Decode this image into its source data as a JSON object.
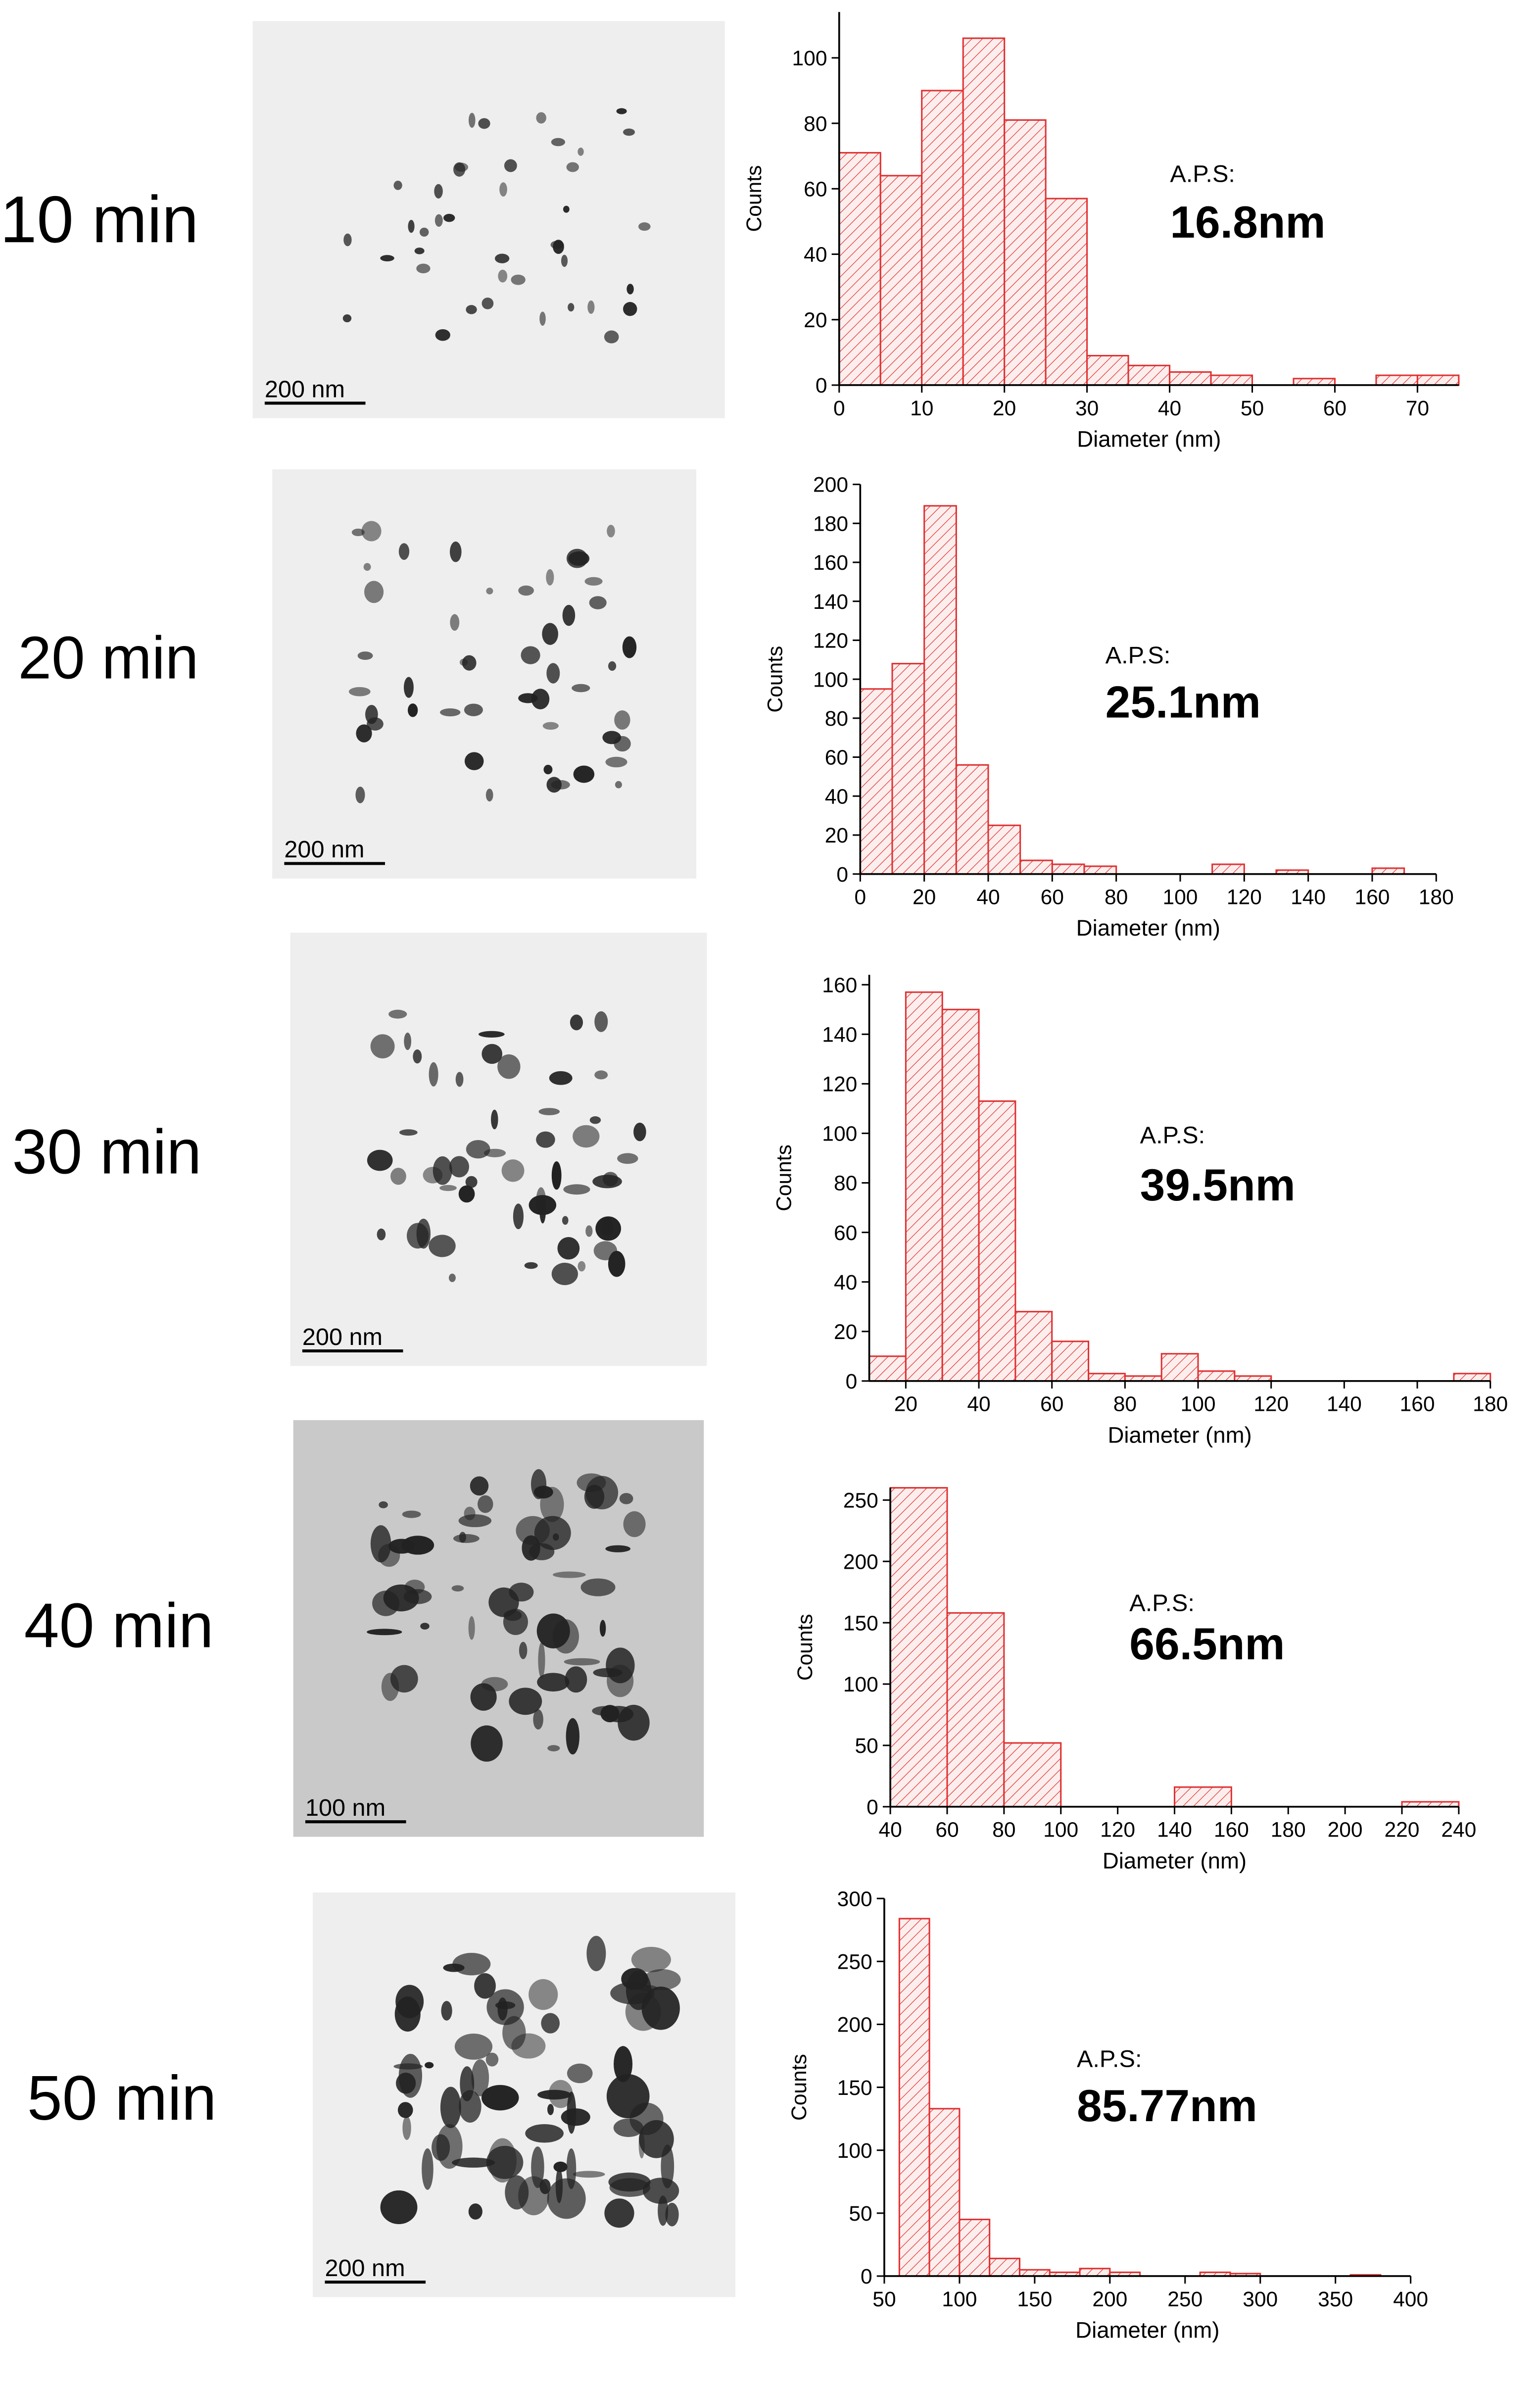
{
  "panels": [
    {
      "label": "10 min",
      "scale_bar": "200 nm"
    },
    {
      "label": "20 min",
      "scale_bar": "200 nm"
    },
    {
      "label": "30 min",
      "scale_bar": "200 nm"
    },
    {
      "label": "40 min",
      "scale_bar": "100 nm"
    },
    {
      "label": "50 min",
      "scale_bar": "200 nm"
    }
  ],
  "chart_data": [
    {
      "type": "histogram",
      "xlabel": "Diameter (nm)",
      "ylabel": "Counts",
      "annotation": "A.P.S:",
      "annotation_value": "16.8nm",
      "color": "#e03030",
      "bins": [
        0,
        5,
        10,
        15,
        20,
        25,
        30,
        35,
        40,
        45,
        50,
        55,
        60,
        65,
        70,
        75
      ],
      "values": [
        71,
        64,
        90,
        106,
        81,
        57,
        9,
        6,
        4,
        3,
        0,
        2,
        0,
        3,
        3
      ],
      "xlim": [
        0,
        75
      ],
      "xticks": [
        0,
        10,
        20,
        30,
        40,
        50,
        60,
        70
      ],
      "ylim": [
        0,
        114
      ],
      "yticks": [
        0,
        20,
        40,
        60,
        80,
        100
      ]
    },
    {
      "type": "histogram",
      "xlabel": "Diameter (nm)",
      "ylabel": "Counts",
      "annotation": "A.P.S:",
      "annotation_value": "25.1nm",
      "color": "#e03030",
      "bins": [
        0,
        10,
        20,
        30,
        40,
        50,
        60,
        70,
        80,
        90,
        100,
        110,
        120,
        130,
        140,
        150,
        160,
        170,
        180
      ],
      "values": [
        95,
        108,
        189,
        56,
        25,
        7,
        5,
        4,
        0,
        0,
        0,
        5,
        0,
        2,
        0,
        0,
        3,
        0
      ],
      "xlim": [
        0,
        180
      ],
      "xticks": [
        0,
        20,
        40,
        60,
        80,
        100,
        120,
        140,
        160,
        180
      ],
      "ylim": [
        0,
        200
      ],
      "yticks": [
        0,
        20,
        40,
        60,
        80,
        100,
        120,
        140,
        160,
        180,
        200
      ]
    },
    {
      "type": "histogram",
      "xlabel": "Diameter (nm)",
      "ylabel": "Counts",
      "annotation": "A.P.S:",
      "annotation_value": "39.5nm",
      "color": "#e03030",
      "bins": [
        10,
        20,
        30,
        40,
        50,
        60,
        70,
        80,
        90,
        100,
        110,
        120,
        130,
        140,
        150,
        160,
        170,
        180
      ],
      "values": [
        10,
        157,
        150,
        113,
        28,
        16,
        3,
        2,
        11,
        4,
        2,
        0,
        0,
        0,
        0,
        0,
        3
      ],
      "xlim": [
        10,
        180
      ],
      "xticks": [
        20,
        40,
        60,
        80,
        100,
        120,
        140,
        160,
        180
      ],
      "ylim": [
        0,
        164
      ],
      "yticks": [
        0,
        20,
        40,
        60,
        80,
        100,
        120,
        140,
        160
      ]
    },
    {
      "type": "histogram",
      "xlabel": "Diameter (nm)",
      "ylabel": "Counts",
      "annotation": "A.P.S:",
      "annotation_value": "66.5nm",
      "color": "#e03030",
      "bins": [
        40,
        60,
        80,
        100,
        120,
        140,
        160,
        180,
        200,
        220,
        240
      ],
      "values": [
        260,
        158,
        52,
        0,
        0,
        16,
        0,
        0,
        0,
        4
      ],
      "xlim": [
        40,
        240
      ],
      "xticks": [
        40,
        60,
        80,
        100,
        120,
        140,
        160,
        180,
        200,
        220,
        240
      ],
      "ylim": [
        0,
        260
      ],
      "yticks": [
        0,
        50,
        100,
        150,
        200,
        250
      ]
    },
    {
      "type": "histogram",
      "xlabel": "Diameter (nm)",
      "ylabel": "Counts",
      "annotation": "A.P.S:",
      "annotation_value": "85.77nm",
      "color": "#e03030",
      "bins": [
        60,
        80,
        100,
        120,
        140,
        160,
        180,
        200,
        220,
        240,
        260,
        280,
        300,
        320,
        340,
        360,
        380,
        400
      ],
      "values": [
        284,
        133,
        45,
        14,
        5,
        3,
        6,
        3,
        0,
        0,
        3,
        2,
        0,
        0,
        0,
        1,
        0
      ],
      "xlim": [
        50,
        400
      ],
      "xticks": [
        50,
        100,
        150,
        200,
        250,
        300,
        350,
        400
      ],
      "ylim": [
        0,
        300
      ],
      "yticks": [
        0,
        50,
        100,
        150,
        200,
        250,
        300
      ]
    }
  ]
}
